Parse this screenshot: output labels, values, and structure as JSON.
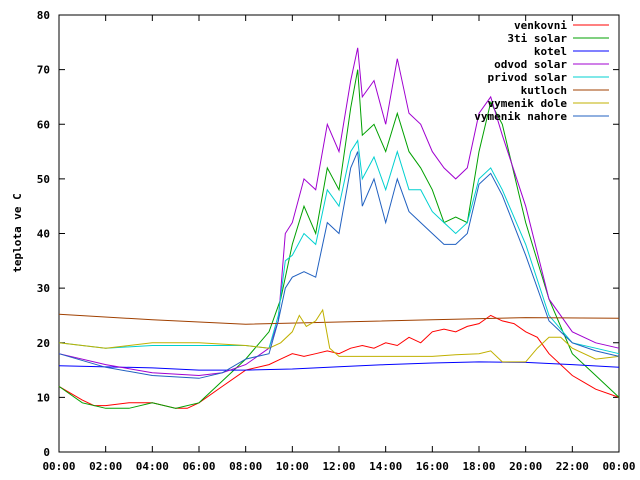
{
  "chart_data": {
    "type": "line",
    "title": "",
    "xlabel": "",
    "ylabel": "teplota ve C",
    "xlim": [
      "00:00",
      "24:00"
    ],
    "ylim": [
      0,
      80
    ],
    "grid": false,
    "legend_position": "top-right",
    "x_ticks": [
      "00:00",
      "02:00",
      "04:00",
      "06:00",
      "08:00",
      "10:00",
      "12:00",
      "14:00",
      "16:00",
      "18:00",
      "20:00",
      "22:00",
      "00:00"
    ],
    "y_ticks": [
      0,
      10,
      20,
      30,
      40,
      50,
      60,
      70,
      80
    ],
    "series": [
      {
        "name": "venkovni",
        "color": "#ff0000",
        "x": [
          0,
          1,
          1.5,
          2,
          3,
          4,
          5,
          5.5,
          6,
          7,
          8,
          9,
          9.5,
          10,
          10.5,
          11,
          11.5,
          12,
          12.5,
          13,
          13.5,
          14,
          14.5,
          15,
          15.5,
          16,
          16.5,
          17,
          17.5,
          18,
          18.5,
          19,
          19.5,
          20,
          20.5,
          21,
          22,
          23,
          24
        ],
        "y": [
          12,
          9.5,
          8.5,
          8.5,
          9,
          9,
          8,
          8,
          9,
          12,
          15,
          16,
          17,
          18,
          17.5,
          18,
          18.5,
          18,
          19,
          19.5,
          19,
          20,
          19.5,
          21,
          20,
          22,
          22.5,
          22,
          23,
          23.5,
          25,
          24,
          23.5,
          22,
          21,
          18,
          14,
          11.5,
          10
        ]
      },
      {
        "name": "3ti solar",
        "color": "#00a000",
        "x": [
          0,
          1,
          2,
          3,
          4,
          5,
          6,
          7,
          8,
          9,
          9.5,
          10,
          10.5,
          11,
          11.5,
          12,
          12.5,
          12.8,
          13,
          13.5,
          14,
          14.5,
          15,
          15.5,
          16,
          16.5,
          17,
          17.5,
          18,
          18.5,
          19,
          20,
          21,
          22,
          23,
          24
        ],
        "y": [
          12,
          9,
          8,
          8,
          9,
          8,
          9,
          13,
          17,
          22,
          28,
          38,
          45,
          40,
          52,
          48,
          63,
          70,
          58,
          60,
          55,
          62,
          55,
          52,
          48,
          42,
          43,
          42,
          55,
          64,
          60,
          42,
          28,
          18,
          14,
          10
        ]
      },
      {
        "name": "kotel",
        "color": "#0000ff",
        "x": [
          0,
          4,
          6,
          8,
          10,
          12,
          14,
          16,
          18,
          20,
          22,
          24
        ],
        "y": [
          15.8,
          15.4,
          15,
          15,
          15.2,
          15.6,
          16,
          16.3,
          16.5,
          16.4,
          16,
          15.5
        ]
      },
      {
        "name": "odvod solar",
        "color": "#a000d0",
        "x": [
          0,
          2,
          4,
          6,
          7,
          8,
          9,
          9.4,
          9.7,
          10,
          10.5,
          11,
          11.5,
          12,
          12.5,
          12.8,
          13,
          13.5,
          14,
          14.5,
          15,
          15.5,
          16,
          16.5,
          17,
          17.5,
          18,
          18.5,
          19,
          20,
          21,
          22,
          23,
          24
        ],
        "y": [
          18,
          16,
          14.5,
          14,
          14.5,
          16,
          19,
          24,
          40,
          42,
          50,
          48,
          60,
          55,
          68,
          74,
          65,
          68,
          60,
          72,
          62,
          60,
          55,
          52,
          50,
          52,
          62,
          65,
          58,
          45,
          28,
          22,
          20,
          19
        ]
      },
      {
        "name": "privod solar",
        "color": "#00d0d0",
        "x": [
          0,
          2,
          4,
          6,
          7,
          8,
          9,
          9.4,
          9.7,
          10,
          10.5,
          11,
          11.5,
          12,
          12.5,
          12.8,
          13,
          13.5,
          14,
          14.5,
          15,
          15.5,
          16,
          16.5,
          17,
          17.5,
          18,
          18.5,
          19,
          20,
          21,
          22,
          23,
          24
        ],
        "y": [
          20,
          19,
          19.5,
          19.5,
          19.5,
          19.5,
          19,
          25,
          35,
          36,
          40,
          38,
          48,
          45,
          55,
          57,
          50,
          54,
          48,
          55,
          48,
          48,
          44,
          42,
          40,
          42,
          50,
          52,
          48,
          38,
          25,
          20,
          19,
          18
        ]
      },
      {
        "name": "kutloch",
        "color": "#a04000",
        "x": [
          0,
          4,
          8,
          12,
          16,
          20,
          24
        ],
        "y": [
          25.2,
          24.2,
          23.4,
          23.8,
          24.2,
          24.6,
          24.5
        ]
      },
      {
        "name": "vymenik dole",
        "color": "#c0b000",
        "x": [
          0,
          2,
          4,
          6,
          8,
          9,
          9.5,
          10,
          10.3,
          10.6,
          11,
          11.3,
          11.6,
          12,
          13,
          14,
          15,
          16,
          17,
          18,
          18.5,
          19,
          20,
          20.5,
          21,
          21.5,
          22,
          23,
          24
        ],
        "y": [
          20,
          19,
          20,
          20,
          19.5,
          19,
          20,
          22,
          25,
          23,
          24,
          26,
          19,
          17.5,
          17.5,
          17.5,
          17.5,
          17.5,
          17.8,
          18,
          18.5,
          16.5,
          16.5,
          19,
          21,
          21,
          19,
          17,
          17.5
        ]
      },
      {
        "name": "vymenik nahore",
        "color": "#2060c0",
        "x": [
          0,
          2,
          4,
          6,
          7,
          8,
          9,
          9.4,
          9.7,
          10,
          10.5,
          11,
          11.5,
          12,
          12.5,
          12.8,
          13,
          13.5,
          14,
          14.5,
          15,
          15.5,
          16,
          16.5,
          17,
          17.5,
          18,
          18.5,
          19,
          20,
          21,
          22,
          23,
          24
        ],
        "y": [
          18,
          15.5,
          14,
          13.5,
          14.5,
          17,
          18,
          24,
          30,
          32,
          33,
          32,
          42,
          40,
          52,
          55,
          45,
          50,
          42,
          50,
          44,
          42,
          40,
          38,
          38,
          40,
          49,
          51,
          47,
          36,
          24,
          20,
          18.5,
          17.5
        ]
      }
    ]
  }
}
